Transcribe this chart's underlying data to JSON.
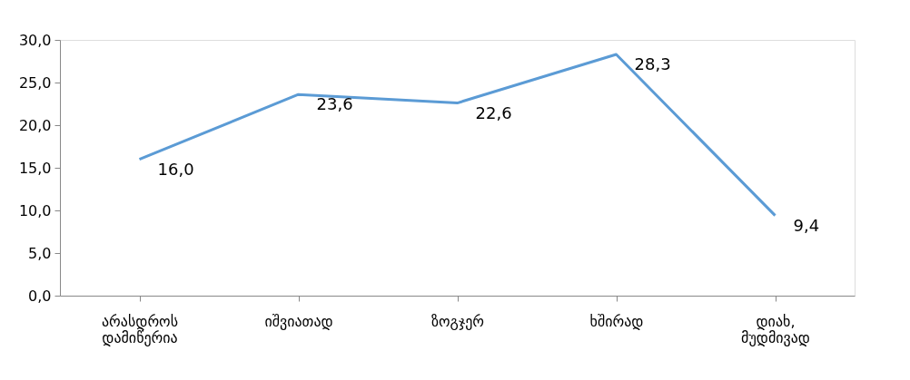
{
  "chart_data": {
    "type": "line",
    "categories": [
      "არასდროს დამიწერია",
      "იშვიათად",
      "ზოგჯერ",
      "ხშირად",
      "დიახ, მუდმივად"
    ],
    "series": [
      {
        "color": "#5b9bd5",
        "values": [
          16.0,
          23.6,
          22.6,
          28.3,
          9.4
        ],
        "value_labels": [
          "16,0",
          "23,6",
          "22,6",
          "28,3",
          "9,4"
        ]
      }
    ],
    "ylim": [
      0,
      30
    ],
    "yticks": [
      {
        "value": 0,
        "label": "0,0"
      },
      {
        "value": 5,
        "label": "5,0"
      },
      {
        "value": 10,
        "label": "10,0"
      },
      {
        "value": 15,
        "label": "15,0"
      },
      {
        "value": 20,
        "label": "20,0"
      },
      {
        "value": 25,
        "label": "25,0"
      },
      {
        "value": 30,
        "label": "30,0"
      }
    ],
    "grid": false,
    "marker": "none",
    "line_style": "solid"
  }
}
